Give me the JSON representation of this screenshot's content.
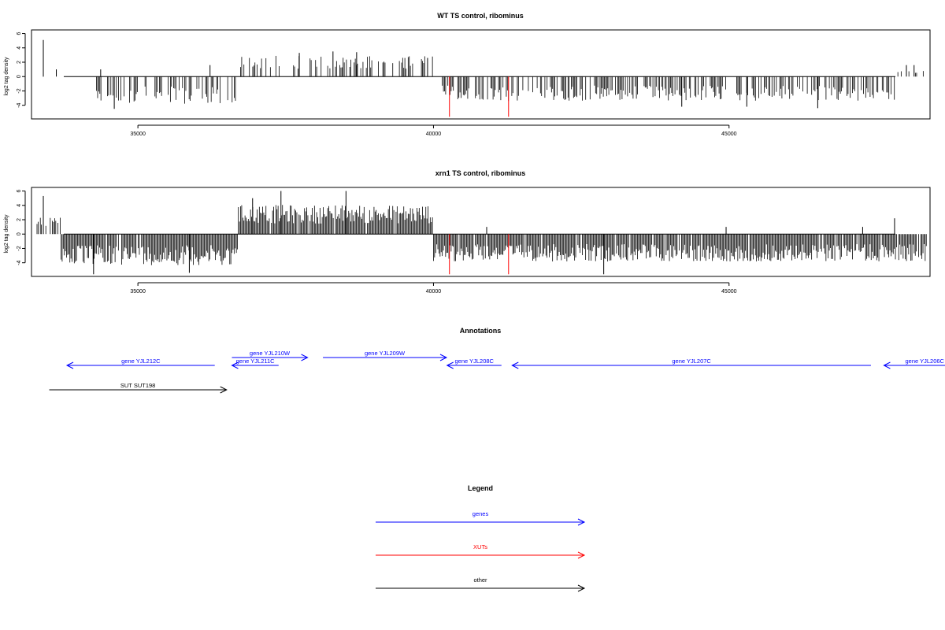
{
  "chart_data": [
    {
      "type": "bar",
      "title": "WT TS control, ribominus",
      "ylabel": "log2 tag density",
      "xlim": [
        33200,
        48400
      ],
      "ylim": [
        -5.9,
        6.5
      ],
      "xticks": [
        35000,
        40000,
        45000
      ],
      "yticks": [
        -4,
        -2,
        0,
        2,
        4,
        6
      ],
      "grid": false,
      "segments": [
        {
          "from": 33200,
          "to": 34300,
          "sign": 1,
          "density": 0.02,
          "amp": 0.6
        },
        {
          "from": 34300,
          "to": 36700,
          "sign": -1,
          "density": 0.45,
          "amp": 2.7
        },
        {
          "from": 36700,
          "to": 40000,
          "sign": 1,
          "density": 0.4,
          "amp": 2.0
        },
        {
          "from": 40150,
          "to": 47800,
          "sign": -1,
          "density": 0.55,
          "amp": 2.4
        },
        {
          "from": 47800,
          "to": 48350,
          "sign": 1,
          "density": 0.1,
          "amp": 0.5
        }
      ],
      "spikes": [
        {
          "x": 33400,
          "y": 5.1
        },
        {
          "x": 33400,
          "y": 2.2
        },
        {
          "x": 33620,
          "y": 1.0
        },
        {
          "x": 34370,
          "y": 1.0
        },
        {
          "x": 34600,
          "y": -4.5
        },
        {
          "x": 36220,
          "y": 1.6
        },
        {
          "x": 37730,
          "y": 3.3
        },
        {
          "x": 38300,
          "y": 3.5
        },
        {
          "x": 38700,
          "y": 3.4
        },
        {
          "x": 39900,
          "y": 2.6
        },
        {
          "x": 44200,
          "y": -4.2
        },
        {
          "x": 45300,
          "y": -4.2
        },
        {
          "x": 46500,
          "y": -4.4
        },
        {
          "x": 48130,
          "y": 1.6
        },
        {
          "x": 48000,
          "y": 1.6
        }
      ],
      "highlight_spikes": [
        {
          "x": 40270,
          "y": -5.6
        },
        {
          "x": 41270,
          "y": -5.6
        }
      ]
    },
    {
      "type": "bar",
      "title": "xrn1 TS control, ribominus",
      "ylabel": "log2 tag density",
      "xlim": [
        33200,
        48400
      ],
      "ylim": [
        -5.9,
        6.5
      ],
      "xticks": [
        35000,
        40000,
        45000
      ],
      "yticks": [
        -4,
        -2,
        0,
        2,
        4,
        6
      ],
      "grid": false,
      "segments": [
        {
          "from": 33200,
          "to": 33700,
          "sign": 1,
          "density": 0.35,
          "amp": 1.6
        },
        {
          "from": 33700,
          "to": 36700,
          "sign": -1,
          "density": 0.95,
          "amp": 3.1
        },
        {
          "from": 36700,
          "to": 40000,
          "sign": 1,
          "density": 0.95,
          "amp": 2.9
        },
        {
          "from": 40000,
          "to": 48350,
          "sign": -1,
          "density": 0.95,
          "amp": 2.7
        }
      ],
      "spikes": [
        {
          "x": 33400,
          "y": 5.3
        },
        {
          "x": 37420,
          "y": 6.0
        },
        {
          "x": 38520,
          "y": 6.0
        },
        {
          "x": 36940,
          "y": 5.0
        },
        {
          "x": 34250,
          "y": -5.6
        },
        {
          "x": 35870,
          "y": -5.4
        },
        {
          "x": 42880,
          "y": -5.6
        },
        {
          "x": 47800,
          "y": 2.2
        },
        {
          "x": 47260,
          "y": 1.0
        },
        {
          "x": 44950,
          "y": 1.0
        },
        {
          "x": 40900,
          "y": 1.0
        }
      ],
      "highlight_spikes": [
        {
          "x": 40270,
          "y": -5.6
        },
        {
          "x": 41270,
          "y": -5.6
        }
      ]
    }
  ],
  "annotations": {
    "title": "Annotations",
    "features": [
      {
        "label": "gene YJL212C",
        "start": 36300,
        "end": 33800,
        "row": 1,
        "category": "genes"
      },
      {
        "label": "gene YJL211C",
        "start": 37380,
        "end": 36590,
        "row": 1,
        "category": "genes"
      },
      {
        "label": "gene YJL210W",
        "start": 36590,
        "end": 37870,
        "row": 0,
        "category": "genes"
      },
      {
        "label": "gene YJL209W",
        "start": 38130,
        "end": 40220,
        "row": 0,
        "category": "genes"
      },
      {
        "label": "gene YJL208C",
        "start": 41150,
        "end": 40230,
        "row": 1,
        "category": "genes"
      },
      {
        "label": "gene YJL207C",
        "start": 47400,
        "end": 41330,
        "row": 1,
        "category": "genes"
      },
      {
        "label": "gene YJL206C",
        "start": 49000,
        "end": 47620,
        "row": 1,
        "category": "genes"
      },
      {
        "label": "SUT SUT198",
        "start": 33500,
        "end": 36500,
        "row": 2,
        "category": "other"
      }
    ]
  },
  "legend": {
    "title": "Legend",
    "items": [
      {
        "label": "genes",
        "color": "#0000ff"
      },
      {
        "label": "XUTs",
        "color": "#ff0000"
      },
      {
        "label": "other",
        "color": "#000000"
      }
    ]
  },
  "colors": {
    "genes": "#0000ff",
    "XUTs": "#ff0000",
    "other": "#000000",
    "highlight": "#ff0000",
    "bars": "#000000"
  }
}
